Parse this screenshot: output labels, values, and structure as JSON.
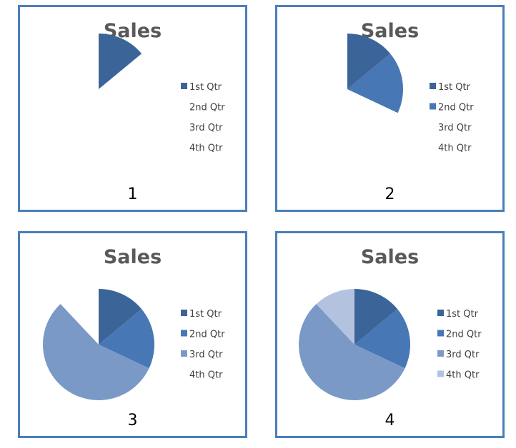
{
  "chart_data": [
    {
      "type": "pie",
      "title": "Sales",
      "step_label": "1",
      "categories": [
        "1st Qtr",
        "2nd Qtr",
        "3rd Qtr",
        "4th Qtr"
      ],
      "values": [
        14,
        18,
        56,
        12
      ],
      "visible_slices": 1,
      "start_angle_deg": 0,
      "legend_position": "right"
    },
    {
      "type": "pie",
      "title": "Sales",
      "step_label": "2",
      "categories": [
        "1st Qtr",
        "2nd Qtr",
        "3rd Qtr",
        "4th Qtr"
      ],
      "values": [
        14,
        18,
        56,
        12
      ],
      "visible_slices": 2,
      "start_angle_deg": 0,
      "legend_position": "right"
    },
    {
      "type": "pie",
      "title": "Sales",
      "step_label": "3",
      "categories": [
        "1st Qtr",
        "2nd Qtr",
        "3rd Qtr",
        "4th Qtr"
      ],
      "values": [
        14,
        18,
        56,
        12
      ],
      "visible_slices": 3,
      "start_angle_deg": 0,
      "legend_position": "right"
    },
    {
      "type": "pie",
      "title": "Sales",
      "step_label": "4",
      "categories": [
        "1st Qtr",
        "2nd Qtr",
        "3rd Qtr",
        "4th Qtr"
      ],
      "values": [
        14,
        18,
        56,
        12
      ],
      "visible_slices": 4,
      "start_angle_deg": 0,
      "legend_position": "right"
    }
  ],
  "colors": {
    "panel_border": "#4a7ebb",
    "slices": [
      "#3b6498",
      "#4777b4",
      "#7b99c7",
      "#b3c2df"
    ],
    "title": "#595959",
    "legend_text": "#404040"
  }
}
